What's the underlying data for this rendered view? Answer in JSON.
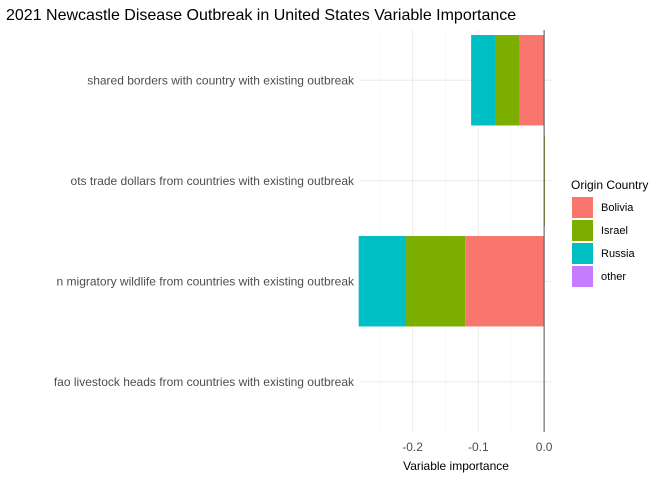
{
  "chart_data": {
    "type": "bar",
    "orientation": "horizontal",
    "stacked": true,
    "title": "2021 Newcastle Disease Outbreak in United States Variable Importance",
    "xlabel": "Variable importance",
    "ylabel": "",
    "xlim": [
      -0.28,
      0.012
    ],
    "xticks": [
      -0.2,
      -0.1,
      0.0
    ],
    "xtick_labels": [
      "-0.2",
      "-0.1",
      "0.0"
    ],
    "grid": true,
    "legend_position": "right",
    "legend_title": "Origin Country",
    "categories": [
      "shared borders with country with existing outbreak",
      "ots trade dollars from countries with existing outbreak",
      "n migratory wildlife from countries with existing outbreak",
      "fao livestock heads from countries with existing outbreak"
    ],
    "series": [
      {
        "name": "Bolivia",
        "color": "#F8766D",
        "values": [
          -0.037,
          0.0,
          -0.12,
          0.0
        ]
      },
      {
        "name": "Israel",
        "color": "#7CAE00",
        "values": [
          -0.037,
          0.001,
          -0.09,
          0.0
        ]
      },
      {
        "name": "Russia",
        "color": "#00BFC4",
        "values": [
          -0.037,
          0.0,
          -0.072,
          0.0
        ]
      },
      {
        "name": "other",
        "color": "#C77CFF",
        "values": [
          0.0,
          0.0,
          0.0,
          0.0
        ]
      }
    ]
  }
}
